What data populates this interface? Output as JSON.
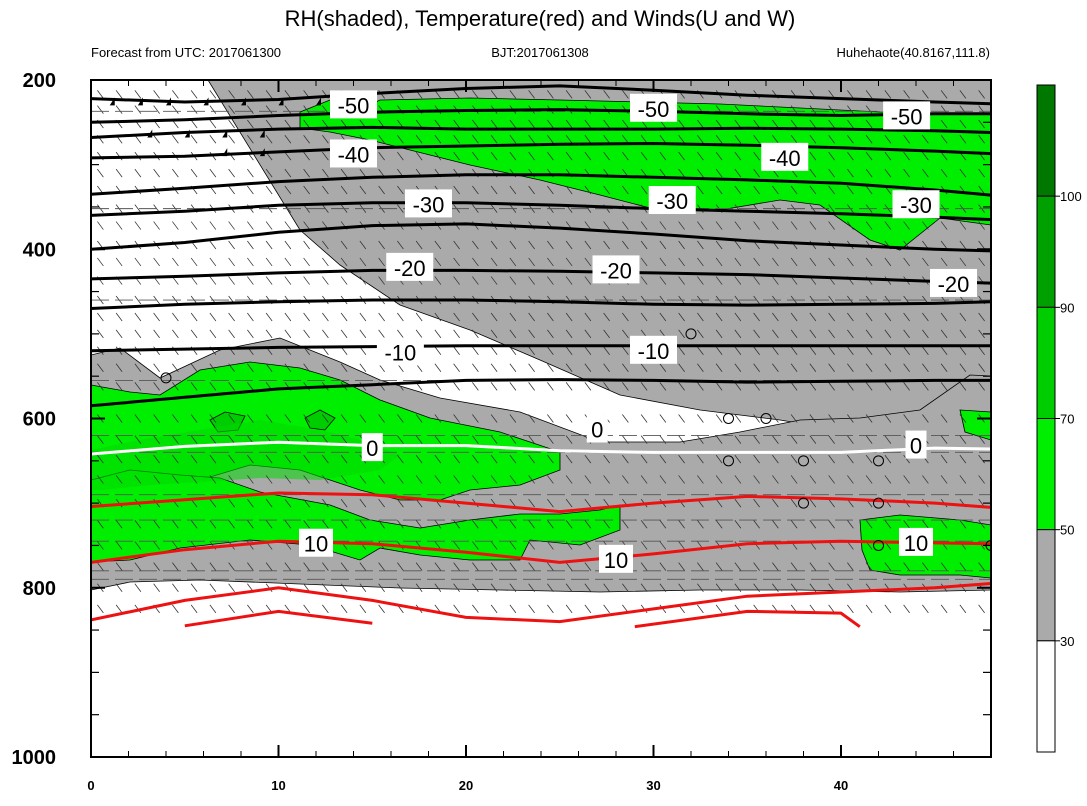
{
  "chart_data": {
    "type": "contour",
    "title": "RH(shaded), Temperature(red) and Winds(U and W)",
    "subtitle_left": "Forecast from UTC: 2017061300",
    "subtitle_center": "BJT:2017061308",
    "subtitle_right": "Huhehaote(40.8167,111.8)",
    "x_ticks": [
      "0",
      "10",
      "20",
      "30",
      "40"
    ],
    "x_tick_values": [
      0,
      10,
      20,
      30,
      40
    ],
    "xlim": [
      0,
      48
    ],
    "y_ticks": [
      "200",
      "400",
      "600",
      "800",
      "1000"
    ],
    "y_tick_values": [
      200,
      400,
      600,
      800,
      1000
    ],
    "ylim": [
      200,
      1000
    ],
    "y_reversed": true,
    "colorbar": {
      "levels": [
        30,
        50,
        70,
        90,
        100
      ],
      "labels": [
        "30",
        "50",
        "70",
        "90",
        "100"
      ],
      "colors": [
        "#ffffff",
        "#aaaaaa",
        "#00ee00",
        "#00cd00",
        "#00a000",
        "#007800"
      ]
    },
    "contour_labels": [
      {
        "text": "-50",
        "x": 14,
        "y": 230
      },
      {
        "text": "-50",
        "x": 30,
        "y": 234
      },
      {
        "text": "-50",
        "x": 43.5,
        "y": 243
      },
      {
        "text": "-40",
        "x": 14,
        "y": 288
      },
      {
        "text": "-40",
        "x": 37,
        "y": 292
      },
      {
        "text": "-30",
        "x": 18,
        "y": 347
      },
      {
        "text": "-30",
        "x": 31,
        "y": 343
      },
      {
        "text": "-30",
        "x": 44,
        "y": 348
      },
      {
        "text": "-20",
        "x": 17,
        "y": 422
      },
      {
        "text": "-20",
        "x": 28,
        "y": 425
      },
      {
        "text": "-20",
        "x": 46,
        "y": 441
      },
      {
        "text": "-10",
        "x": 16.5,
        "y": 522
      },
      {
        "text": "-10",
        "x": 30,
        "y": 520
      },
      {
        "text": "0",
        "x": 15,
        "y": 635
      },
      {
        "text": "0",
        "x": 27,
        "y": 613
      },
      {
        "text": "0",
        "x": 44,
        "y": 632
      },
      {
        "text": "10",
        "x": 12,
        "y": 748
      },
      {
        "text": "10",
        "x": 28,
        "y": 767
      },
      {
        "text": "10",
        "x": 44,
        "y": 747
      }
    ],
    "black_isotherms": [
      {
        "x": [
          0,
          5,
          10,
          15,
          20,
          25,
          30,
          35,
          40,
          45,
          48
        ],
        "y": [
          222,
          226,
          223,
          216,
          210,
          207,
          212,
          218,
          222,
          226,
          228
        ]
      },
      {
        "x": [
          0,
          5,
          10,
          15,
          20,
          25,
          30,
          35,
          40,
          45,
          48
        ],
        "y": [
          250,
          247,
          242,
          238,
          236,
          235,
          237,
          240,
          242,
          240,
          240
        ]
      },
      {
        "x": [
          0,
          5,
          10,
          15,
          20,
          25,
          30,
          35,
          40,
          45,
          48
        ],
        "y": [
          268,
          262,
          258,
          256,
          258,
          258,
          258,
          257,
          258,
          260,
          262
        ]
      },
      {
        "x": [
          0,
          5,
          10,
          15,
          20,
          25,
          30,
          35,
          40,
          45,
          48
        ],
        "y": [
          292,
          290,
          285,
          280,
          278,
          276,
          275,
          277,
          280,
          284,
          287
        ]
      },
      {
        "x": [
          0,
          5,
          10,
          15,
          20,
          25,
          30,
          35,
          40,
          45,
          48
        ],
        "y": [
          335,
          328,
          320,
          315,
          312,
          312,
          315,
          318,
          322,
          330,
          336
        ]
      },
      {
        "x": [
          0,
          5,
          10,
          15,
          20,
          25,
          30,
          35,
          40,
          45,
          48
        ],
        "y": [
          360,
          355,
          348,
          345,
          345,
          348,
          352,
          355,
          358,
          362,
          365
        ]
      },
      {
        "x": [
          0,
          5,
          10,
          15,
          20,
          25,
          30,
          35,
          40,
          45,
          48
        ],
        "y": [
          400,
          392,
          380,
          372,
          370,
          375,
          382,
          390,
          395,
          400,
          402
        ]
      },
      {
        "x": [
          0,
          5,
          10,
          15,
          20,
          25,
          30,
          35,
          40,
          45,
          48
        ],
        "y": [
          435,
          432,
          428,
          425,
          425,
          426,
          428,
          430,
          434,
          438,
          440
        ]
      },
      {
        "x": [
          0,
          5,
          10,
          15,
          20,
          25,
          30,
          35,
          40,
          45,
          48
        ],
        "y": [
          470,
          465,
          462,
          460,
          460,
          462,
          465,
          466,
          465,
          464,
          462
        ]
      },
      {
        "x": [
          0,
          5,
          10,
          15,
          20,
          25,
          30,
          35,
          40,
          45,
          48
        ],
        "y": [
          520,
          518,
          516,
          515,
          514,
          514,
          514,
          514,
          514,
          514,
          514
        ]
      },
      {
        "x": [
          0,
          5,
          10,
          15,
          20,
          25,
          30,
          35,
          40,
          45,
          48
        ],
        "y": [
          585,
          575,
          565,
          560,
          555,
          554,
          555,
          557,
          556,
          555,
          555
        ]
      }
    ],
    "red_isotherms": [
      {
        "x": [
          0,
          5,
          10,
          15,
          20,
          25,
          30,
          35,
          40,
          45,
          48
        ],
        "y": [
          704,
          696,
          688,
          690,
          700,
          710,
          700,
          692,
          695,
          700,
          705
        ]
      },
      {
        "x": [
          0,
          5,
          10,
          15,
          20,
          25,
          30,
          35,
          40,
          45,
          48
        ],
        "y": [
          770,
          755,
          745,
          748,
          758,
          770,
          760,
          748,
          745,
          747,
          748
        ]
      },
      {
        "x": [
          0,
          5,
          10,
          15,
          20,
          25,
          30,
          35,
          40,
          45,
          48
        ],
        "y": [
          838,
          815,
          800,
          815,
          835,
          840,
          825,
          810,
          805,
          800,
          795
        ]
      },
      {
        "x": [
          5,
          10,
          15
        ],
        "y": [
          845,
          828,
          842
        ]
      },
      {
        "x": [
          29,
          35,
          40,
          41
        ],
        "y": [
          846,
          828,
          830,
          846
        ]
      }
    ],
    "zero_isotherm": {
      "x": [
        0,
        5,
        10,
        15,
        20,
        25,
        30,
        35,
        40,
        45,
        48
      ],
      "y": [
        642,
        633,
        628,
        632,
        632,
        638,
        640,
        640,
        640,
        635,
        636
      ]
    }
  }
}
